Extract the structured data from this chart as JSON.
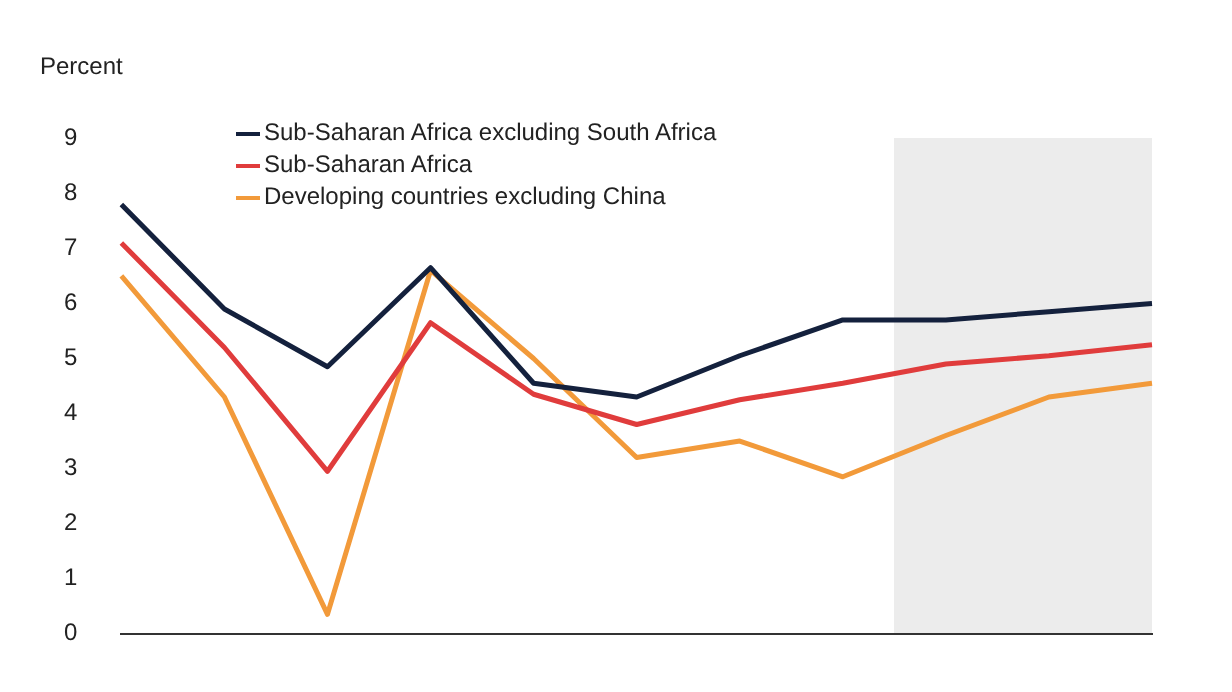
{
  "chart_data": {
    "type": "line",
    "ylabel": "Percent",
    "categories": [
      null,
      null,
      null,
      null,
      null,
      null,
      null,
      null,
      null,
      null,
      null
    ],
    "series": [
      {
        "name": "Sub-Saharan Africa excluding South Africa",
        "color": "#14213d",
        "values": [
          7.8,
          5.9,
          4.85,
          6.65,
          4.55,
          4.3,
          5.05,
          5.7,
          5.7,
          5.85,
          6.0
        ]
      },
      {
        "name": "Sub-Saharan Africa",
        "color": "#e03c3c",
        "values": [
          7.1,
          5.2,
          2.95,
          5.65,
          4.35,
          3.8,
          4.25,
          4.55,
          4.9,
          5.05,
          5.25
        ]
      },
      {
        "name": "Developing countries excluding China",
        "color": "#f29a3a",
        "values": [
          6.5,
          4.3,
          0.35,
          6.6,
          5.0,
          3.2,
          3.5,
          2.85,
          3.6,
          4.3,
          4.55
        ]
      }
    ],
    "ylim": [
      0,
      9
    ],
    "yticks": [
      0,
      1,
      2,
      3,
      4,
      5,
      6,
      7,
      8,
      9
    ],
    "grid": false,
    "legend": "top left",
    "marker": "none",
    "line_style": "solid",
    "tick_labels": "y"
  }
}
